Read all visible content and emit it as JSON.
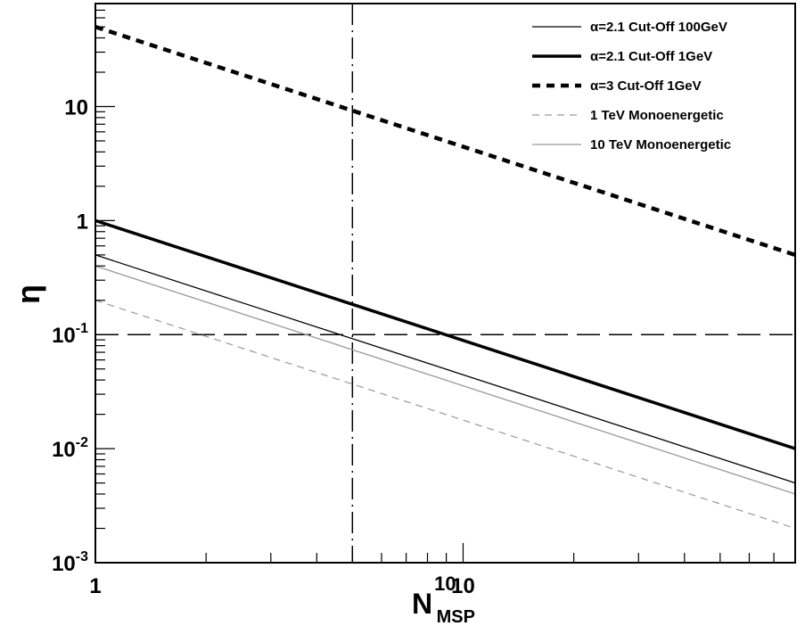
{
  "chart_data": {
    "type": "line",
    "xscale": "log",
    "yscale": "log",
    "xlim": [
      1,
      80
    ],
    "ylim": [
      0.001,
      80
    ],
    "x_ticks": [
      {
        "value": 1,
        "label": "1"
      },
      {
        "value": 10,
        "label": "10"
      }
    ],
    "y_ticks": [
      {
        "value": 10,
        "base": "10",
        "exp": ""
      },
      {
        "value": 1,
        "base": "1",
        "exp": ""
      },
      {
        "value": 0.1,
        "base": "10",
        "exp": "-1"
      },
      {
        "value": 0.01,
        "base": "10",
        "exp": "-2"
      },
      {
        "value": 0.001,
        "base": "10",
        "exp": "-3"
      }
    ],
    "xlabel": {
      "main": "N",
      "sub": "MSP",
      "sup": "10"
    },
    "ylabel": "η",
    "legend_position": "top-right",
    "series": [
      {
        "name": "α=2.1 Cut-Off 100GeV",
        "style": "thin-solid",
        "color": "#000000",
        "x": [
          1,
          80
        ],
        "y": [
          0.5,
          0.005
        ]
      },
      {
        "name": "α=2.1 Cut-Off 1GeV",
        "style": "thick-solid",
        "color": "#000000",
        "x": [
          1,
          80
        ],
        "y": [
          1.0,
          0.01
        ]
      },
      {
        "name": "α=3 Cut-Off 1GeV",
        "style": "thick-dotted",
        "color": "#000000",
        "x": [
          1,
          80
        ],
        "y": [
          50,
          0.5
        ]
      },
      {
        "name": "1 TeV Monoenergetic",
        "style": "thin-dashed",
        "color": "#999999",
        "x": [
          1,
          80
        ],
        "y": [
          0.2,
          0.002
        ]
      },
      {
        "name": "10 TeV Monoenergetic",
        "style": "thin-solid",
        "color": "#999999",
        "x": [
          1,
          80
        ],
        "y": [
          0.4,
          0.004
        ]
      }
    ],
    "reference_lines": [
      {
        "orientation": "vertical",
        "x": 5,
        "style": "dash-dot"
      },
      {
        "orientation": "horizontal",
        "y": 0.1,
        "style": "long-dash"
      }
    ]
  }
}
